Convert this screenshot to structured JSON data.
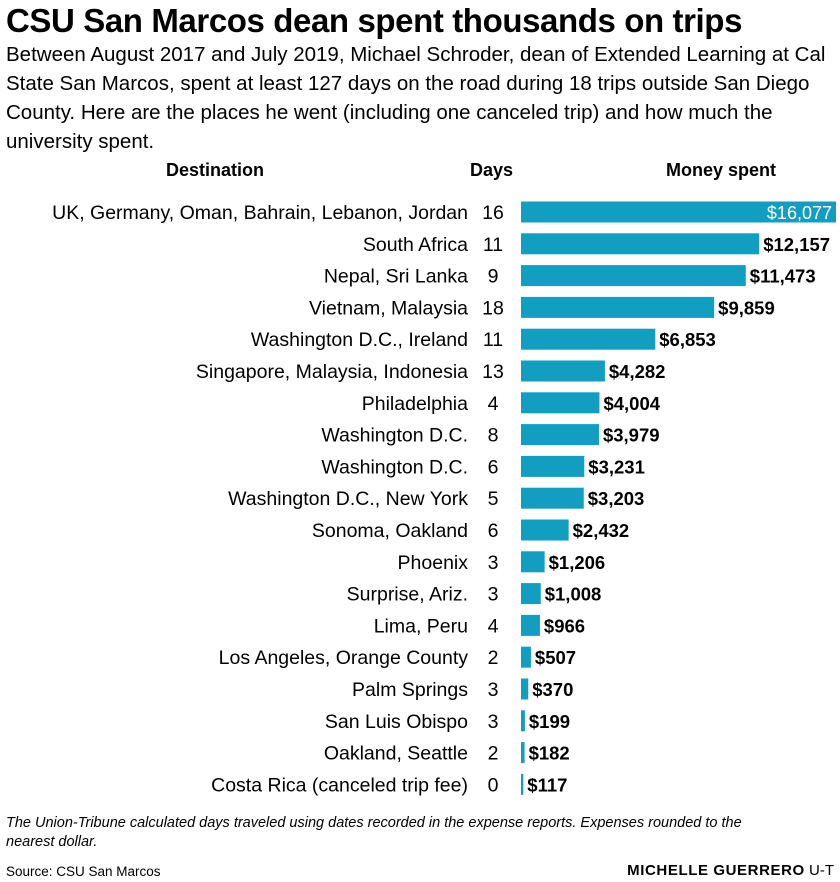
{
  "header": {
    "title": "CSU San Marcos dean spent thousands on trips",
    "subtitle": "Between August 2017 and July 2019, Michael Schroder, dean of Extended Learning at Cal State San Marcos, spent at least 127 days on the road during 18 trips outside San Diego County. Here are the places he went (including one canceled trip) and how much the university spent."
  },
  "columns": {
    "destination": "Destination",
    "days": "Days",
    "money": "Money spent"
  },
  "colors": {
    "bar": "#119ec1",
    "inside_label": "#ffffff",
    "text": "#000000"
  },
  "chart_data": {
    "type": "bar",
    "orientation": "horizontal",
    "categories": [
      "UK, Germany, Oman, Bahrain, Lebanon, Jordan",
      "South Africa",
      "Nepal, Sri Lanka",
      "Vietnam, Malaysia",
      "Washington D.C., Ireland",
      "Singapore, Malaysia, Indonesia",
      "Philadelphia",
      "Washington D.C.",
      "Washington D.C.",
      "Washington D.C., New York",
      "Sonoma, Oakland",
      "Phoenix",
      "Surprise, Ariz.",
      "Lima, Peru",
      "Los Angeles, Orange County",
      "Palm Springs",
      "San Luis Obispo",
      "Oakland, Seattle",
      "Costa Rica (canceled trip fee)"
    ],
    "days": [
      16,
      11,
      9,
      18,
      11,
      13,
      4,
      8,
      6,
      5,
      6,
      3,
      3,
      4,
      2,
      3,
      3,
      2,
      0
    ],
    "values": [
      16077,
      12157,
      11473,
      9859,
      6853,
      4282,
      4004,
      3979,
      3231,
      3203,
      2432,
      1206,
      1008,
      966,
      507,
      370,
      199,
      182,
      117
    ],
    "value_labels": [
      "$16,077",
      "$12,157",
      "$11,473",
      "$9,859",
      "$6,853",
      "$4,282",
      "$4,004",
      "$3,979",
      "$3,231",
      "$3,203",
      "$2,432",
      "$1,206",
      "$1,008",
      "$966",
      "$507",
      "$370",
      "$199",
      "$182",
      "$117"
    ],
    "xlim": [
      0,
      16077
    ],
    "grid": false,
    "legend": "none"
  },
  "footer": {
    "note": "The Union-Tribune calculated days traveled using dates recorded in the expense reports. Expenses rounded to the nearest dollar.",
    "source": "Source: CSU San Marcos",
    "credit_name": "MICHELLE GUERRERO",
    "credit_org": "U-T"
  }
}
